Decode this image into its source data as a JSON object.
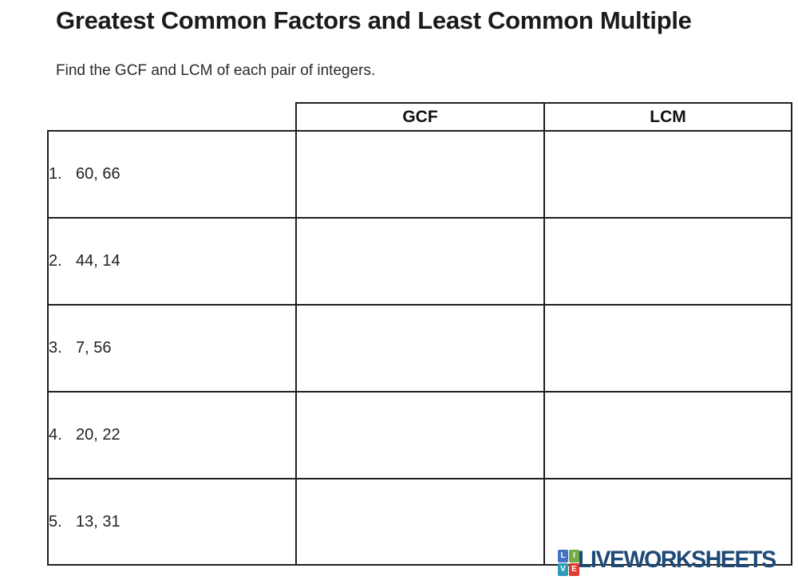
{
  "page": {
    "title": "Greatest Common Factors and Least Common Multiple",
    "instructions": "Find the GCF and LCM of each pair of integers."
  },
  "table": {
    "headers": {
      "gcf": "GCF",
      "lcm": "LCM"
    },
    "rows": [
      {
        "num": "1.",
        "pair": "60, 66",
        "gcf": "",
        "lcm": ""
      },
      {
        "num": "2.",
        "pair": "44, 14",
        "gcf": "",
        "lcm": ""
      },
      {
        "num": "3.",
        "pair": "7, 56",
        "gcf": "",
        "lcm": ""
      },
      {
        "num": "4.",
        "pair": "20, 22",
        "gcf": "",
        "lcm": ""
      },
      {
        "num": "5.",
        "pair": "13, 31",
        "gcf": "",
        "lcm": ""
      }
    ]
  },
  "logo": {
    "text": "LIVEWORKSHEETS",
    "icon_letters": [
      "L",
      "I",
      "V",
      "E"
    ],
    "icon_colors": [
      "#4472c4",
      "#70ad47",
      "#2e9bb5",
      "#e03a2f"
    ],
    "text_color": "#1e4a77"
  }
}
